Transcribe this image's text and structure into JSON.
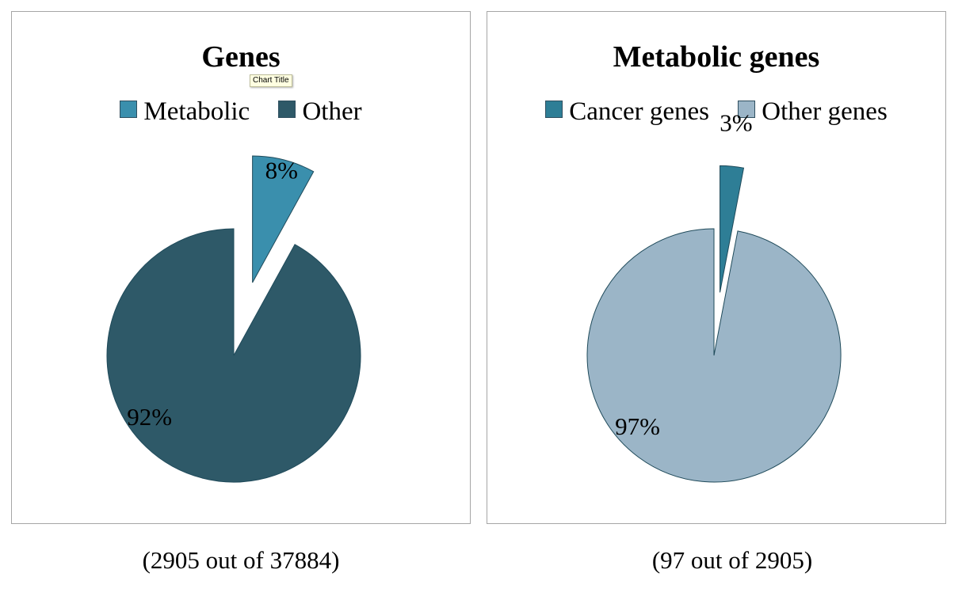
{
  "chart_data": [
    {
      "type": "pie",
      "title": "Genes",
      "categories": [
        "Metabolic",
        "Other"
      ],
      "values": [
        8,
        92
      ],
      "data_labels": [
        "8%",
        "92%"
      ],
      "colors": [
        "#3a8fad",
        "#2e5968"
      ],
      "exploded": "Metabolic",
      "legend_position": "top",
      "caption": "(2905 out of 37884)"
    },
    {
      "type": "pie",
      "title": "Metabolic genes",
      "categories": [
        "Cancer genes",
        "Other genes"
      ],
      "values": [
        3,
        97
      ],
      "data_labels": [
        "3%",
        "97%"
      ],
      "colors": [
        "#2e7e96",
        "#9bb5c7"
      ],
      "exploded": "Cancer genes",
      "legend_position": "top",
      "caption": "(97 out of 2905)"
    }
  ],
  "tooltip": {
    "text": "Chart Title"
  }
}
